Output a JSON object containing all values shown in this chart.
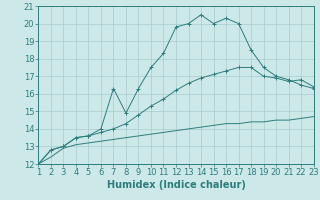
{
  "xlabel": "Humidex (Indice chaleur)",
  "bg_color": "#cce8e8",
  "line_color": "#2d7d7d",
  "grid_color": "#a8cccc",
  "x_ticks": [
    1,
    2,
    3,
    4,
    5,
    6,
    7,
    8,
    9,
    10,
    11,
    12,
    13,
    14,
    15,
    16,
    17,
    18,
    19,
    20,
    21,
    22,
    23
  ],
  "y_ticks": [
    12,
    13,
    14,
    15,
    16,
    17,
    18,
    19,
    20,
    21
  ],
  "ylim": [
    12,
    21
  ],
  "xlim": [
    1,
    23
  ],
  "line1_x": [
    1,
    2,
    3,
    4,
    5,
    6,
    7,
    8,
    9,
    10,
    11,
    12,
    13,
    14,
    15,
    16,
    17,
    18,
    19,
    20,
    21,
    22,
    23
  ],
  "line1_y": [
    12.0,
    12.8,
    13.0,
    13.5,
    13.6,
    14.0,
    16.3,
    14.9,
    16.3,
    17.5,
    18.3,
    19.8,
    20.0,
    20.5,
    20.0,
    20.3,
    20.0,
    18.5,
    17.5,
    17.0,
    16.8,
    16.5,
    16.3
  ],
  "line2_x": [
    1,
    2,
    3,
    4,
    5,
    6,
    7,
    8,
    9,
    10,
    11,
    12,
    13,
    14,
    15,
    16,
    17,
    18,
    19,
    20,
    21,
    22,
    23
  ],
  "line2_y": [
    12.0,
    12.8,
    13.0,
    13.5,
    13.6,
    13.8,
    14.0,
    14.3,
    14.8,
    15.3,
    15.7,
    16.2,
    16.6,
    16.9,
    17.1,
    17.3,
    17.5,
    17.5,
    17.0,
    16.9,
    16.7,
    16.8,
    16.4
  ],
  "line3_x": [
    1,
    2,
    3,
    4,
    5,
    6,
    7,
    8,
    9,
    10,
    11,
    12,
    13,
    14,
    15,
    16,
    17,
    18,
    19,
    20,
    21,
    22,
    23
  ],
  "line3_y": [
    12.0,
    12.4,
    12.9,
    13.1,
    13.2,
    13.3,
    13.4,
    13.5,
    13.6,
    13.7,
    13.8,
    13.9,
    14.0,
    14.1,
    14.2,
    14.3,
    14.3,
    14.4,
    14.4,
    14.5,
    14.5,
    14.6,
    14.7
  ],
  "label_fontsize": 7,
  "tick_fontsize": 6
}
